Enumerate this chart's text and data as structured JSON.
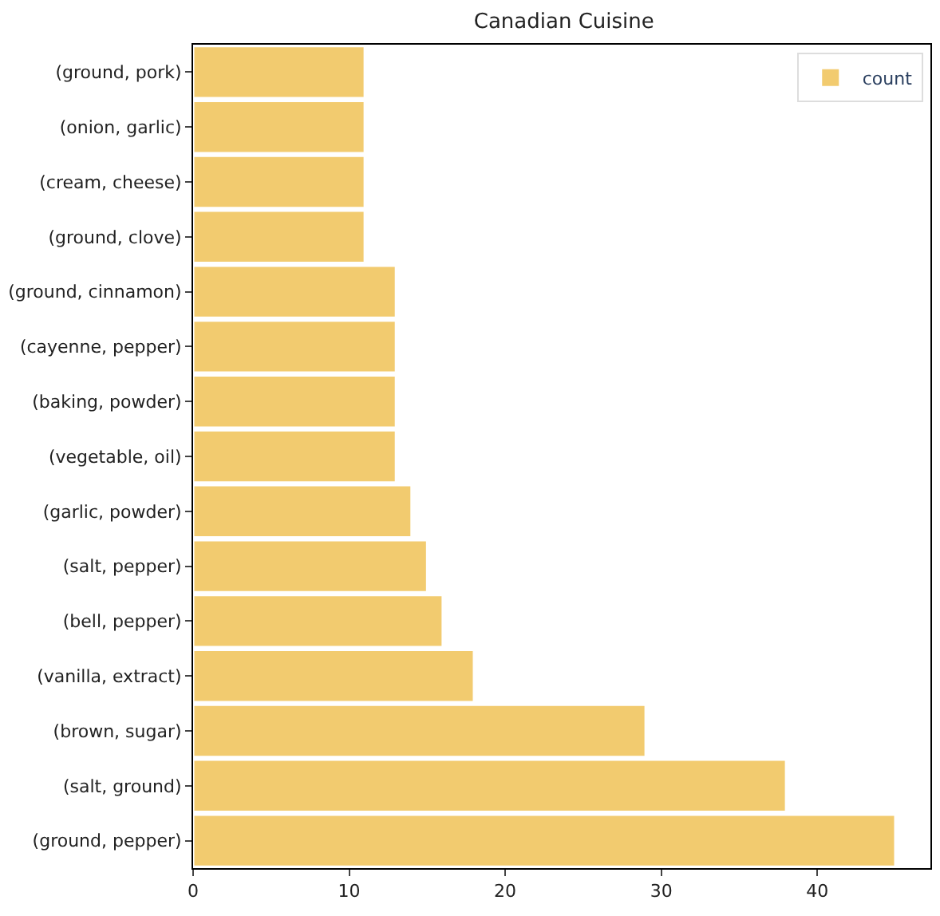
{
  "chart_data": {
    "type": "bar",
    "orientation": "horizontal",
    "title": "Canadian Cuisine",
    "categories": [
      "(ground, pork)",
      "(onion, garlic)",
      "(cream, cheese)",
      "(ground, clove)",
      "(ground, cinnamon)",
      "(cayenne, pepper)",
      "(baking, powder)",
      "(vegetable, oil)",
      "(garlic, powder)",
      "(salt, pepper)",
      "(bell, pepper)",
      "(vanilla, extract)",
      "(brown, sugar)",
      "(salt, ground)",
      "(ground, pepper)"
    ],
    "series": [
      {
        "name": "count",
        "color": "#f2cb6f",
        "values": [
          11,
          11,
          11,
          11,
          13,
          13,
          13,
          13,
          14,
          15,
          16,
          18,
          29,
          38,
          45
        ]
      }
    ],
    "xlim": [
      0,
      47.25
    ],
    "xticks": [
      0,
      10,
      20,
      30,
      40
    ],
    "legend": "top right"
  }
}
